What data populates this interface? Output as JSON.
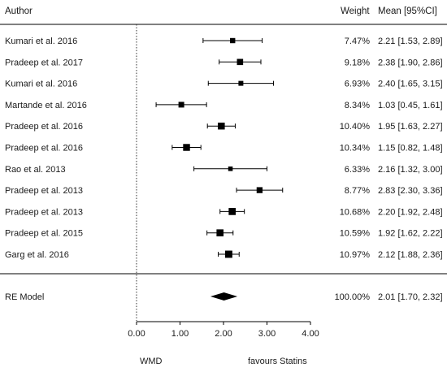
{
  "headers": {
    "author": "Author",
    "weight": "Weight",
    "mean": "Mean [95%CI]"
  },
  "chart_data": {
    "type": "forest",
    "x_axis": {
      "ticks": [
        0,
        1,
        2,
        3,
        4
      ],
      "tick_labels": [
        "0.00",
        "1.00",
        "2.00",
        "3.00",
        "4.00"
      ],
      "range": [
        0,
        4
      ],
      "reference_line": 0
    },
    "xlabel_left": "WMD",
    "xlabel_right": "favours Statins",
    "studies": [
      {
        "author": "Kumari et al. 2016",
        "weight_pct": 7.47,
        "weight_label": "7.47%",
        "mean": 2.21,
        "lower": 1.53,
        "upper": 2.89,
        "ci_label": "2.21 [1.53, 2.89]"
      },
      {
        "author": "Pradeep et al. 2017",
        "weight_pct": 9.18,
        "weight_label": "9.18%",
        "mean": 2.38,
        "lower": 1.9,
        "upper": 2.86,
        "ci_label": "2.38 [1.90, 2.86]"
      },
      {
        "author": "Kumari et al. 2016",
        "weight_pct": 6.93,
        "weight_label": "6.93%",
        "mean": 2.4,
        "lower": 1.65,
        "upper": 3.15,
        "ci_label": "2.40 [1.65, 3.15]"
      },
      {
        "author": "Martande et al. 2016",
        "weight_pct": 8.34,
        "weight_label": "8.34%",
        "mean": 1.03,
        "lower": 0.45,
        "upper": 1.61,
        "ci_label": "1.03 [0.45, 1.61]"
      },
      {
        "author": "Pradeep et al. 2016",
        "weight_pct": 10.4,
        "weight_label": "10.40%",
        "mean": 1.95,
        "lower": 1.63,
        "upper": 2.27,
        "ci_label": "1.95 [1.63, 2.27]"
      },
      {
        "author": "Pradeep et al. 2016",
        "weight_pct": 10.34,
        "weight_label": "10.34%",
        "mean": 1.15,
        "lower": 0.82,
        "upper": 1.48,
        "ci_label": "1.15 [0.82, 1.48]"
      },
      {
        "author": "Rao et al. 2013",
        "weight_pct": 6.33,
        "weight_label": "6.33%",
        "mean": 2.16,
        "lower": 1.32,
        "upper": 3.0,
        "ci_label": "2.16 [1.32, 3.00]"
      },
      {
        "author": "Pradeep et al. 2013",
        "weight_pct": 8.77,
        "weight_label": "8.77%",
        "mean": 2.83,
        "lower": 2.3,
        "upper": 3.36,
        "ci_label": "2.83 [2.30, 3.36]"
      },
      {
        "author": "Pradeep et al. 2013",
        "weight_pct": 10.68,
        "weight_label": "10.68%",
        "mean": 2.2,
        "lower": 1.92,
        "upper": 2.48,
        "ci_label": "2.20 [1.92, 2.48]"
      },
      {
        "author": "Pradeep et al. 2015",
        "weight_pct": 10.59,
        "weight_label": "10.59%",
        "mean": 1.92,
        "lower": 1.62,
        "upper": 2.22,
        "ci_label": "1.92 [1.62, 2.22]"
      },
      {
        "author": "Garg et al. 2016",
        "weight_pct": 10.97,
        "weight_label": "10.97%",
        "mean": 2.12,
        "lower": 1.88,
        "upper": 2.36,
        "ci_label": "2.12 [1.88, 2.36]"
      }
    ],
    "summary": {
      "label": "RE Model",
      "weight_label": "100.00%",
      "mean": 2.01,
      "lower": 1.7,
      "upper": 2.32,
      "ci_label": "2.01 [1.70, 2.32]"
    }
  }
}
